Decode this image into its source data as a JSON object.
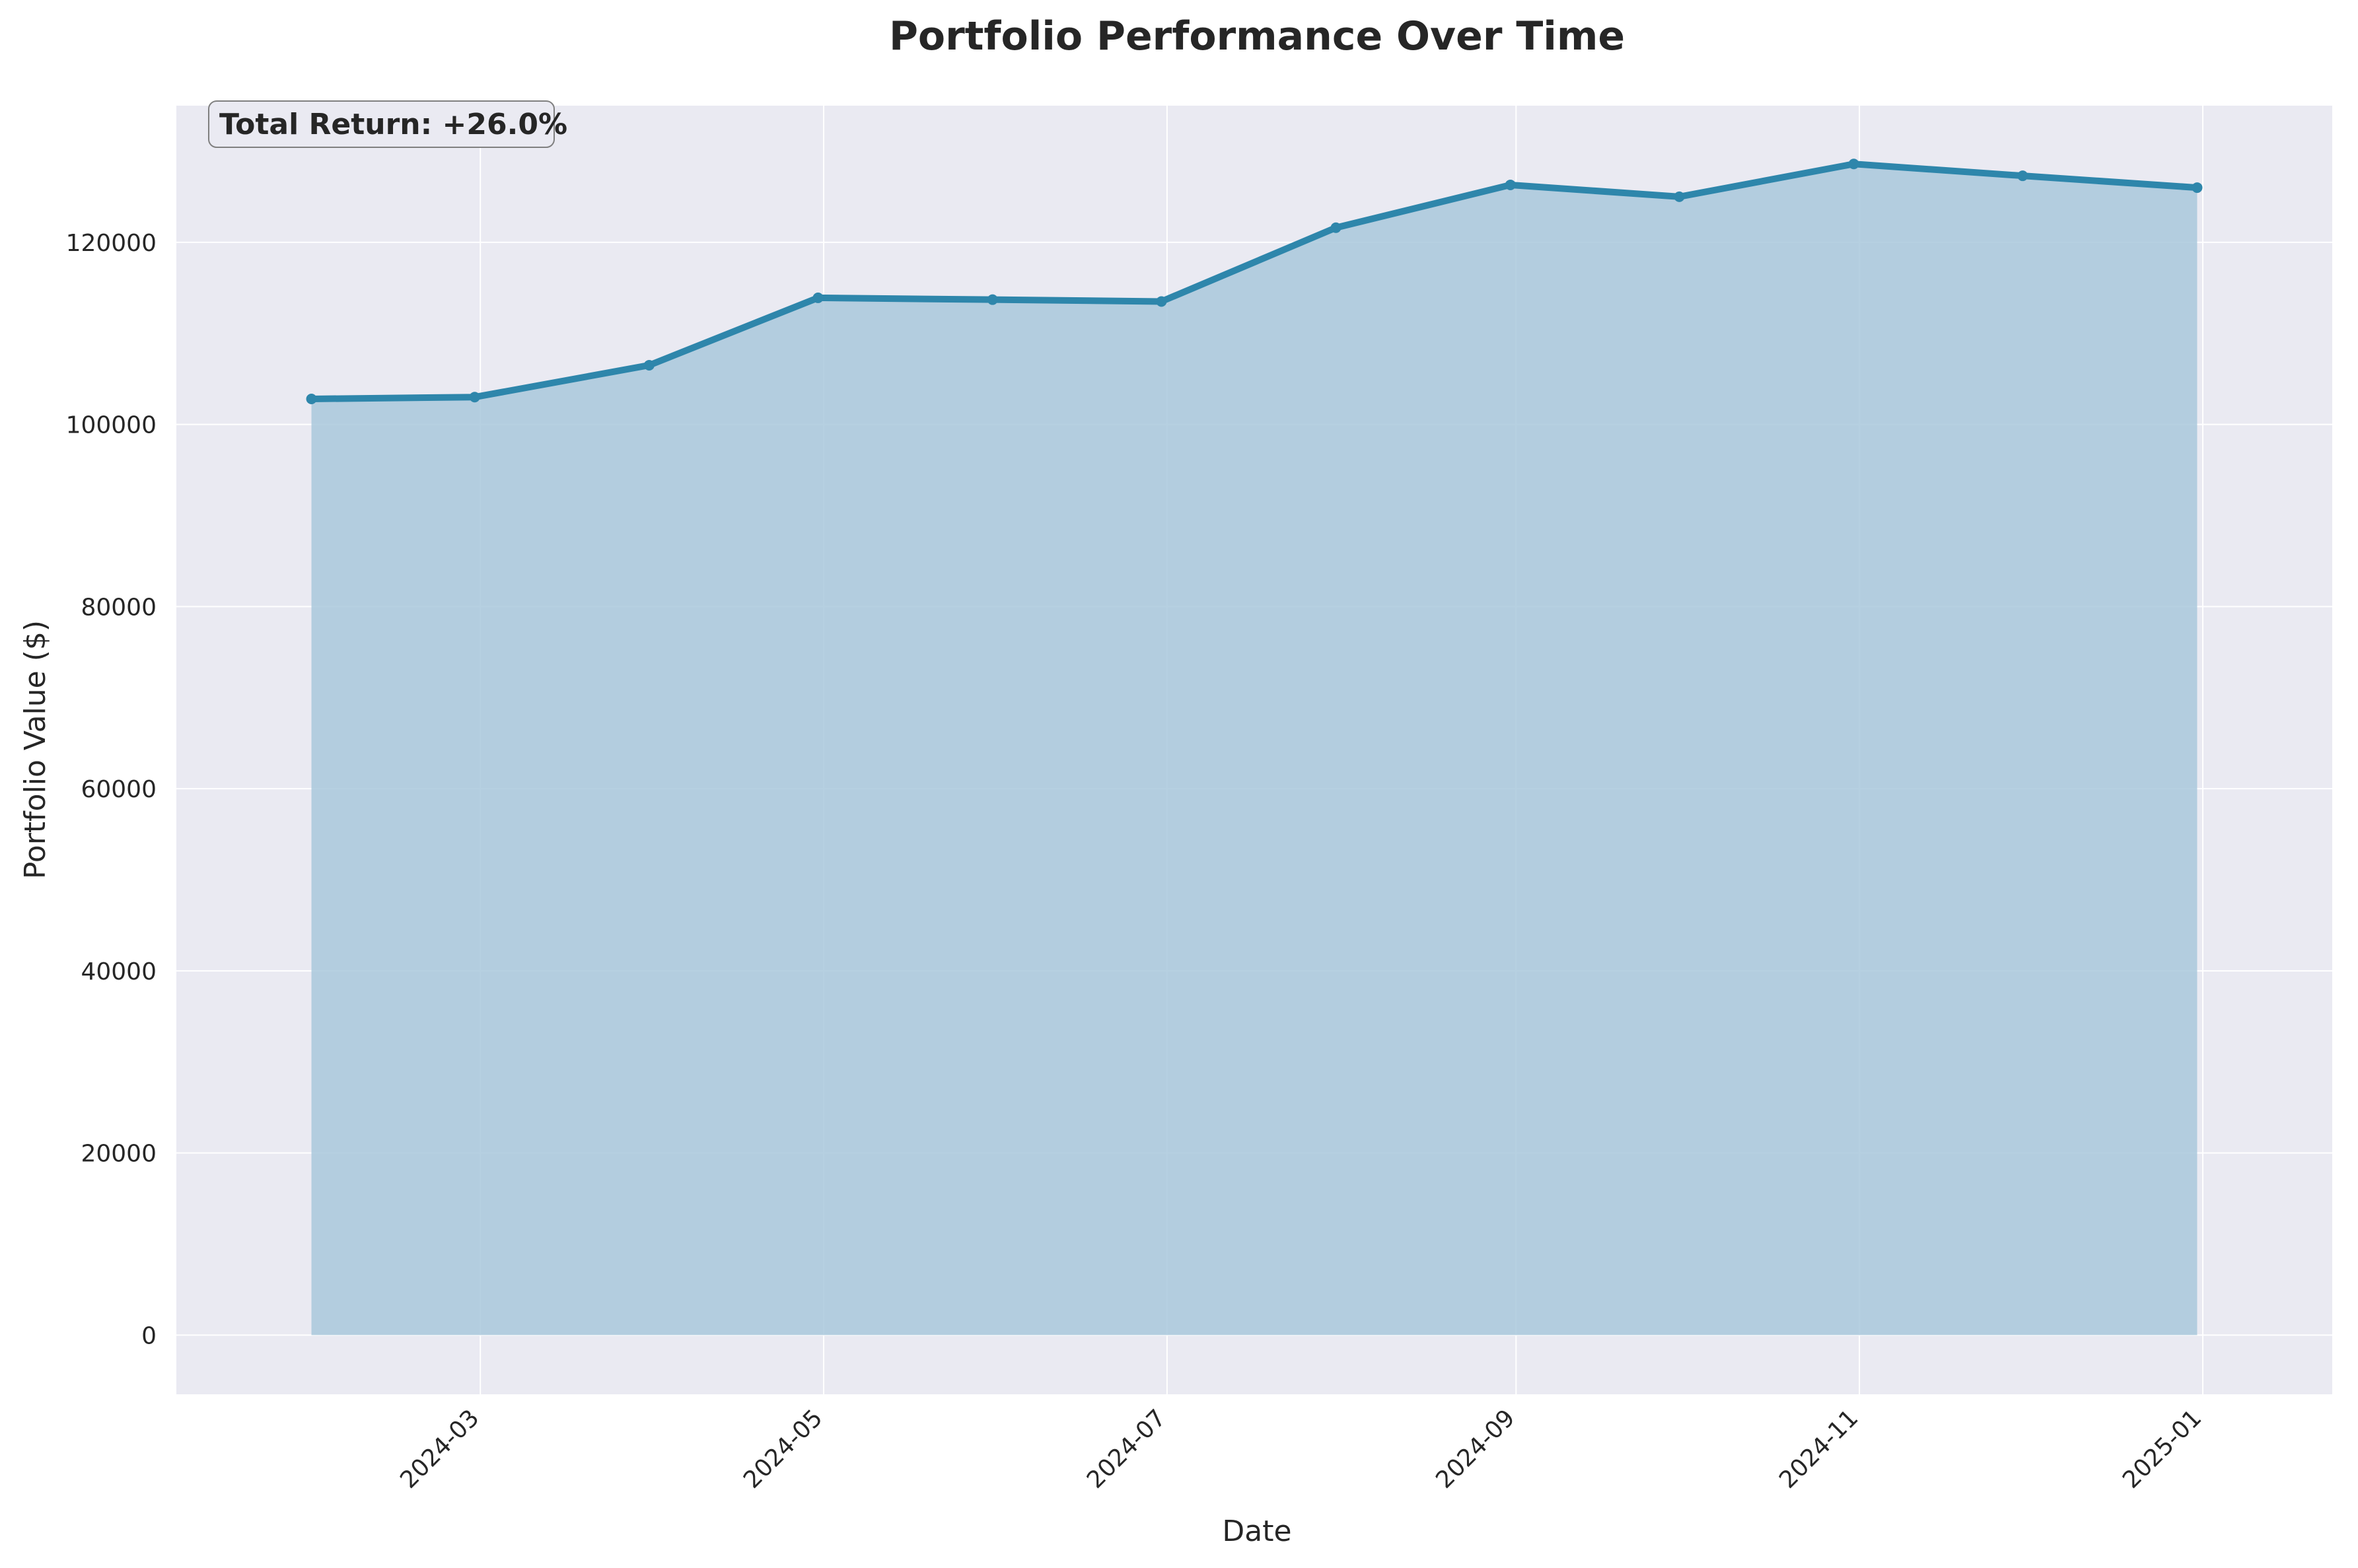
{
  "chart_data": {
    "type": "area",
    "title": "Portfolio Performance Over Time",
    "xlabel": "Date",
    "ylabel": "Portfolio Value ($)",
    "x": [
      "2024-01-31",
      "2024-02-29",
      "2024-03-31",
      "2024-04-30",
      "2024-05-31",
      "2024-06-30",
      "2024-07-31",
      "2024-08-31",
      "2024-09-30",
      "2024-10-31",
      "2024-11-30",
      "2024-12-31"
    ],
    "values": [
      102800,
      103000,
      106500,
      113900,
      113700,
      113500,
      121600,
      126300,
      125000,
      128600,
      127300,
      126000
    ],
    "xlim": [
      "2024-01-07",
      "2025-01-24"
    ],
    "ylim": [
      -6500,
      135000
    ],
    "x_tick_labels": [
      "2024-03",
      "2024-05",
      "2024-07",
      "2024-09",
      "2024-11",
      "2025-01"
    ],
    "x_ticks": [
      "2024-03-01",
      "2024-05-01",
      "2024-07-01",
      "2024-09-01",
      "2024-11-01",
      "2025-01-01"
    ],
    "y_ticks": [
      0,
      20000,
      40000,
      60000,
      80000,
      100000,
      120000
    ],
    "y_tick_labels": [
      "0",
      "20000",
      "40000",
      "60000",
      "80000",
      "100000",
      "120000"
    ],
    "annotation": "Total Return: +26.0%",
    "grid": true,
    "colors": {
      "line": "#2e86ab",
      "fill": "#a9c8dc",
      "plot_background": "#eaeaf2",
      "grid": "#ffffff"
    }
  }
}
